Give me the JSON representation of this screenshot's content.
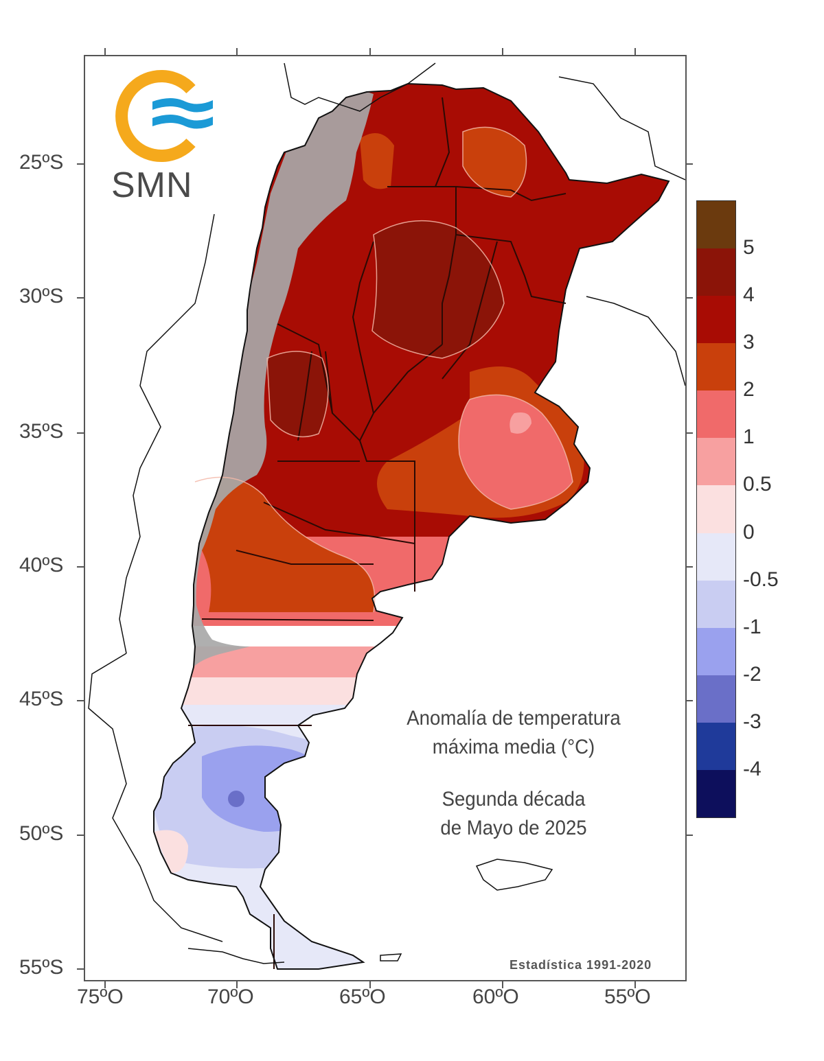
{
  "logo": {
    "text": "SMN",
    "colors": {
      "ring": "#f5a91c",
      "waves": "#1b9ad6"
    }
  },
  "title": {
    "line1": "Anomalía de temperatura",
    "line2": "máxima media (°C)",
    "line3": "Segunda década",
    "line4": "de Mayo de 2025"
  },
  "footer_note": "Estadística 1991-2020",
  "axes": {
    "lat_labels": [
      "25ºS",
      "30ºS",
      "35ºS",
      "40ºS",
      "45ºS",
      "50ºS",
      "55ºS"
    ],
    "lon_labels": [
      "75ºO",
      "70ºO",
      "65ºO",
      "60ºO",
      "55ºO"
    ]
  },
  "legend": {
    "labels": [
      "5",
      "4",
      "3",
      "2",
      "1",
      "0.5",
      "0",
      "-0.5",
      "-1",
      "-2",
      "-3",
      "-4"
    ],
    "colors": [
      "#6b3a0e",
      "#8b1408",
      "#a80c04",
      "#c9400c",
      "#f06a6a",
      "#f7a0a0",
      "#fbe0e0",
      "#e6e8f8",
      "#c9cdf2",
      "#9aa1ee",
      "#6a6fc8",
      "#1f3a9a",
      "#0d0f5c"
    ]
  },
  "map": {
    "relief_color": "#a8a8a8",
    "region_fills": {
      "above_4": "#8b1408",
      "3_to_4": "#a80c04",
      "2_to_3": "#c9400c",
      "1_to_2": "#f06a6a",
      "0.5_to_1": "#f7a0a0",
      "0_to_0.5": "#fbe0e0",
      "-0.5_to_0": "#e6e8f8",
      "-1_to_-0.5": "#c9cdf2",
      "-2_to_-1": "#9aa1ee",
      "-3_to_-2": "#6a6fc8"
    }
  }
}
